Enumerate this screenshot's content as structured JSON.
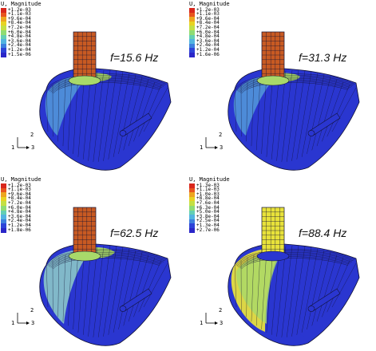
{
  "panels": [
    {
      "id": "p1",
      "legend_title": "U, Magnitude",
      "legend_values": [
        "+1.2e-03",
        "+1.1e-03",
        "+9.6e-04",
        "+8.4e-04",
        "+7.2e-04",
        "+6.0e-04",
        "+4.8e-04",
        "+3.6e-04",
        "+2.4e-04",
        "+1.2e-04",
        "+1.5e-06"
      ],
      "frequency": "f=15.6 Hz",
      "axis_vertical": "2",
      "axis_horizontal": "1",
      "axis_out": "3",
      "rod_color": "#c85a22",
      "surface_mode": "low"
    },
    {
      "id": "p2",
      "legend_title": "U, Magnitude",
      "legend_values": [
        "+1.2e-03",
        "+1.1e-03",
        "+9.6e-04",
        "+8.4e-04",
        "+7.2e-04",
        "+6.0e-04",
        "+4.8e-04",
        "+3.6e-04",
        "+2.4e-04",
        "+1.2e-04",
        "+1.6e-06"
      ],
      "frequency": "f=31.3 Hz",
      "axis_vertical": "2",
      "axis_horizontal": "1",
      "axis_out": "3",
      "rod_color": "#c85a22",
      "surface_mode": "low"
    },
    {
      "id": "p3",
      "legend_title": "U, Magnitude",
      "legend_values": [
        "+1.2e-03",
        "+1.1e-03",
        "+9.6e-04",
        "+8.4e-04",
        "+7.2e-04",
        "+6.0e-04",
        "+4.8e-04",
        "+3.6e-04",
        "+2.4e-04",
        "+1.2e-04",
        "+1.8e-06"
      ],
      "frequency": "f=62.5 Hz",
      "axis_vertical": "2",
      "axis_horizontal": "1",
      "axis_out": "3",
      "rod_color": "#c85a22",
      "surface_mode": "mid"
    },
    {
      "id": "p4",
      "legend_title": "U, Magnitude",
      "legend_values": [
        "+1.3e-03",
        "+1.1e-03",
        "+1.0e-03",
        "+8.8e-04",
        "+7.6e-04",
        "+6.3e-04",
        "+5.0e-04",
        "+3.8e-04",
        "+2.5e-04",
        "+1.3e-04",
        "+2.7e-06"
      ],
      "frequency": "f=88.4 Hz",
      "axis_vertical": "2",
      "axis_horizontal": "1",
      "axis_out": "3",
      "rod_color": "#e8e23a",
      "surface_mode": "high"
    }
  ],
  "colors": {
    "legend_scale": [
      "#d8261c",
      "#e8541e",
      "#eda51f",
      "#e8d322",
      "#c4e043",
      "#8fdc74",
      "#64cfb3",
      "#52b4e0",
      "#3d80de",
      "#2d43d8",
      "#2a26c8"
    ],
    "surface_base": "#2a36d0",
    "surface_mid": "#4f90d8",
    "surface_light": "#86c0c8",
    "surface_green": "#a8d96a",
    "surface_yellow": "#e6df3e",
    "mesh_line": "#111133"
  }
}
